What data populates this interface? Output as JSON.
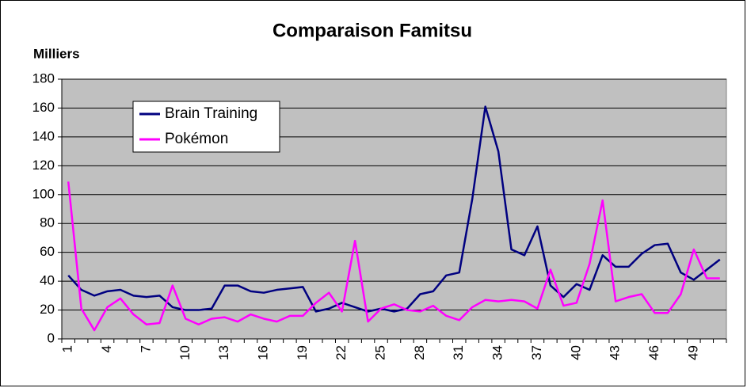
{
  "chart_data": {
    "type": "line",
    "title": "Comparaison Famitsu",
    "y_label": "Milliers",
    "categories": [
      "1",
      null,
      null,
      "4",
      null,
      null,
      "7",
      null,
      null,
      "10",
      null,
      null,
      "13",
      null,
      null,
      "16",
      null,
      null,
      "19",
      null,
      null,
      "22",
      null,
      null,
      "25",
      null,
      null,
      "28",
      null,
      null,
      "31",
      null,
      null,
      "34",
      null,
      null,
      "37",
      null,
      null,
      "40",
      null,
      null,
      "43",
      null,
      null,
      "46",
      null,
      null,
      "49",
      null,
      null
    ],
    "series": [
      {
        "name": "Brain Training",
        "color": "#000080",
        "values": [
          44,
          34,
          30,
          33,
          34,
          30,
          29,
          30,
          22,
          20,
          20,
          21,
          37,
          37,
          33,
          32,
          34,
          35,
          36,
          19,
          21,
          25,
          22,
          19,
          21,
          19,
          21,
          31,
          33,
          44,
          46,
          97,
          161,
          130,
          62,
          58,
          78,
          37,
          29,
          38,
          34,
          58,
          50,
          50,
          59,
          65,
          66,
          46,
          41,
          48,
          55
        ]
      },
      {
        "name": "Pokémon",
        "color": "#ff00ff",
        "values": [
          109,
          21,
          6,
          22,
          28,
          17,
          10,
          11,
          37,
          14,
          10,
          14,
          15,
          12,
          17,
          14,
          12,
          16,
          16,
          25,
          32,
          19,
          68,
          12,
          21,
          24,
          20,
          19,
          23,
          16,
          13,
          22,
          27,
          26,
          27,
          26,
          21,
          48,
          23,
          25,
          52,
          96,
          26,
          29,
          31,
          18,
          18,
          31,
          62,
          42,
          42
        ]
      }
    ],
    "ylim": [
      0,
      180
    ],
    "yticks": [
      0,
      20,
      40,
      60,
      80,
      100,
      120,
      140,
      160,
      180
    ],
    "grid": true,
    "plot_background": "#c0c0c0",
    "legend": "upper-left"
  }
}
